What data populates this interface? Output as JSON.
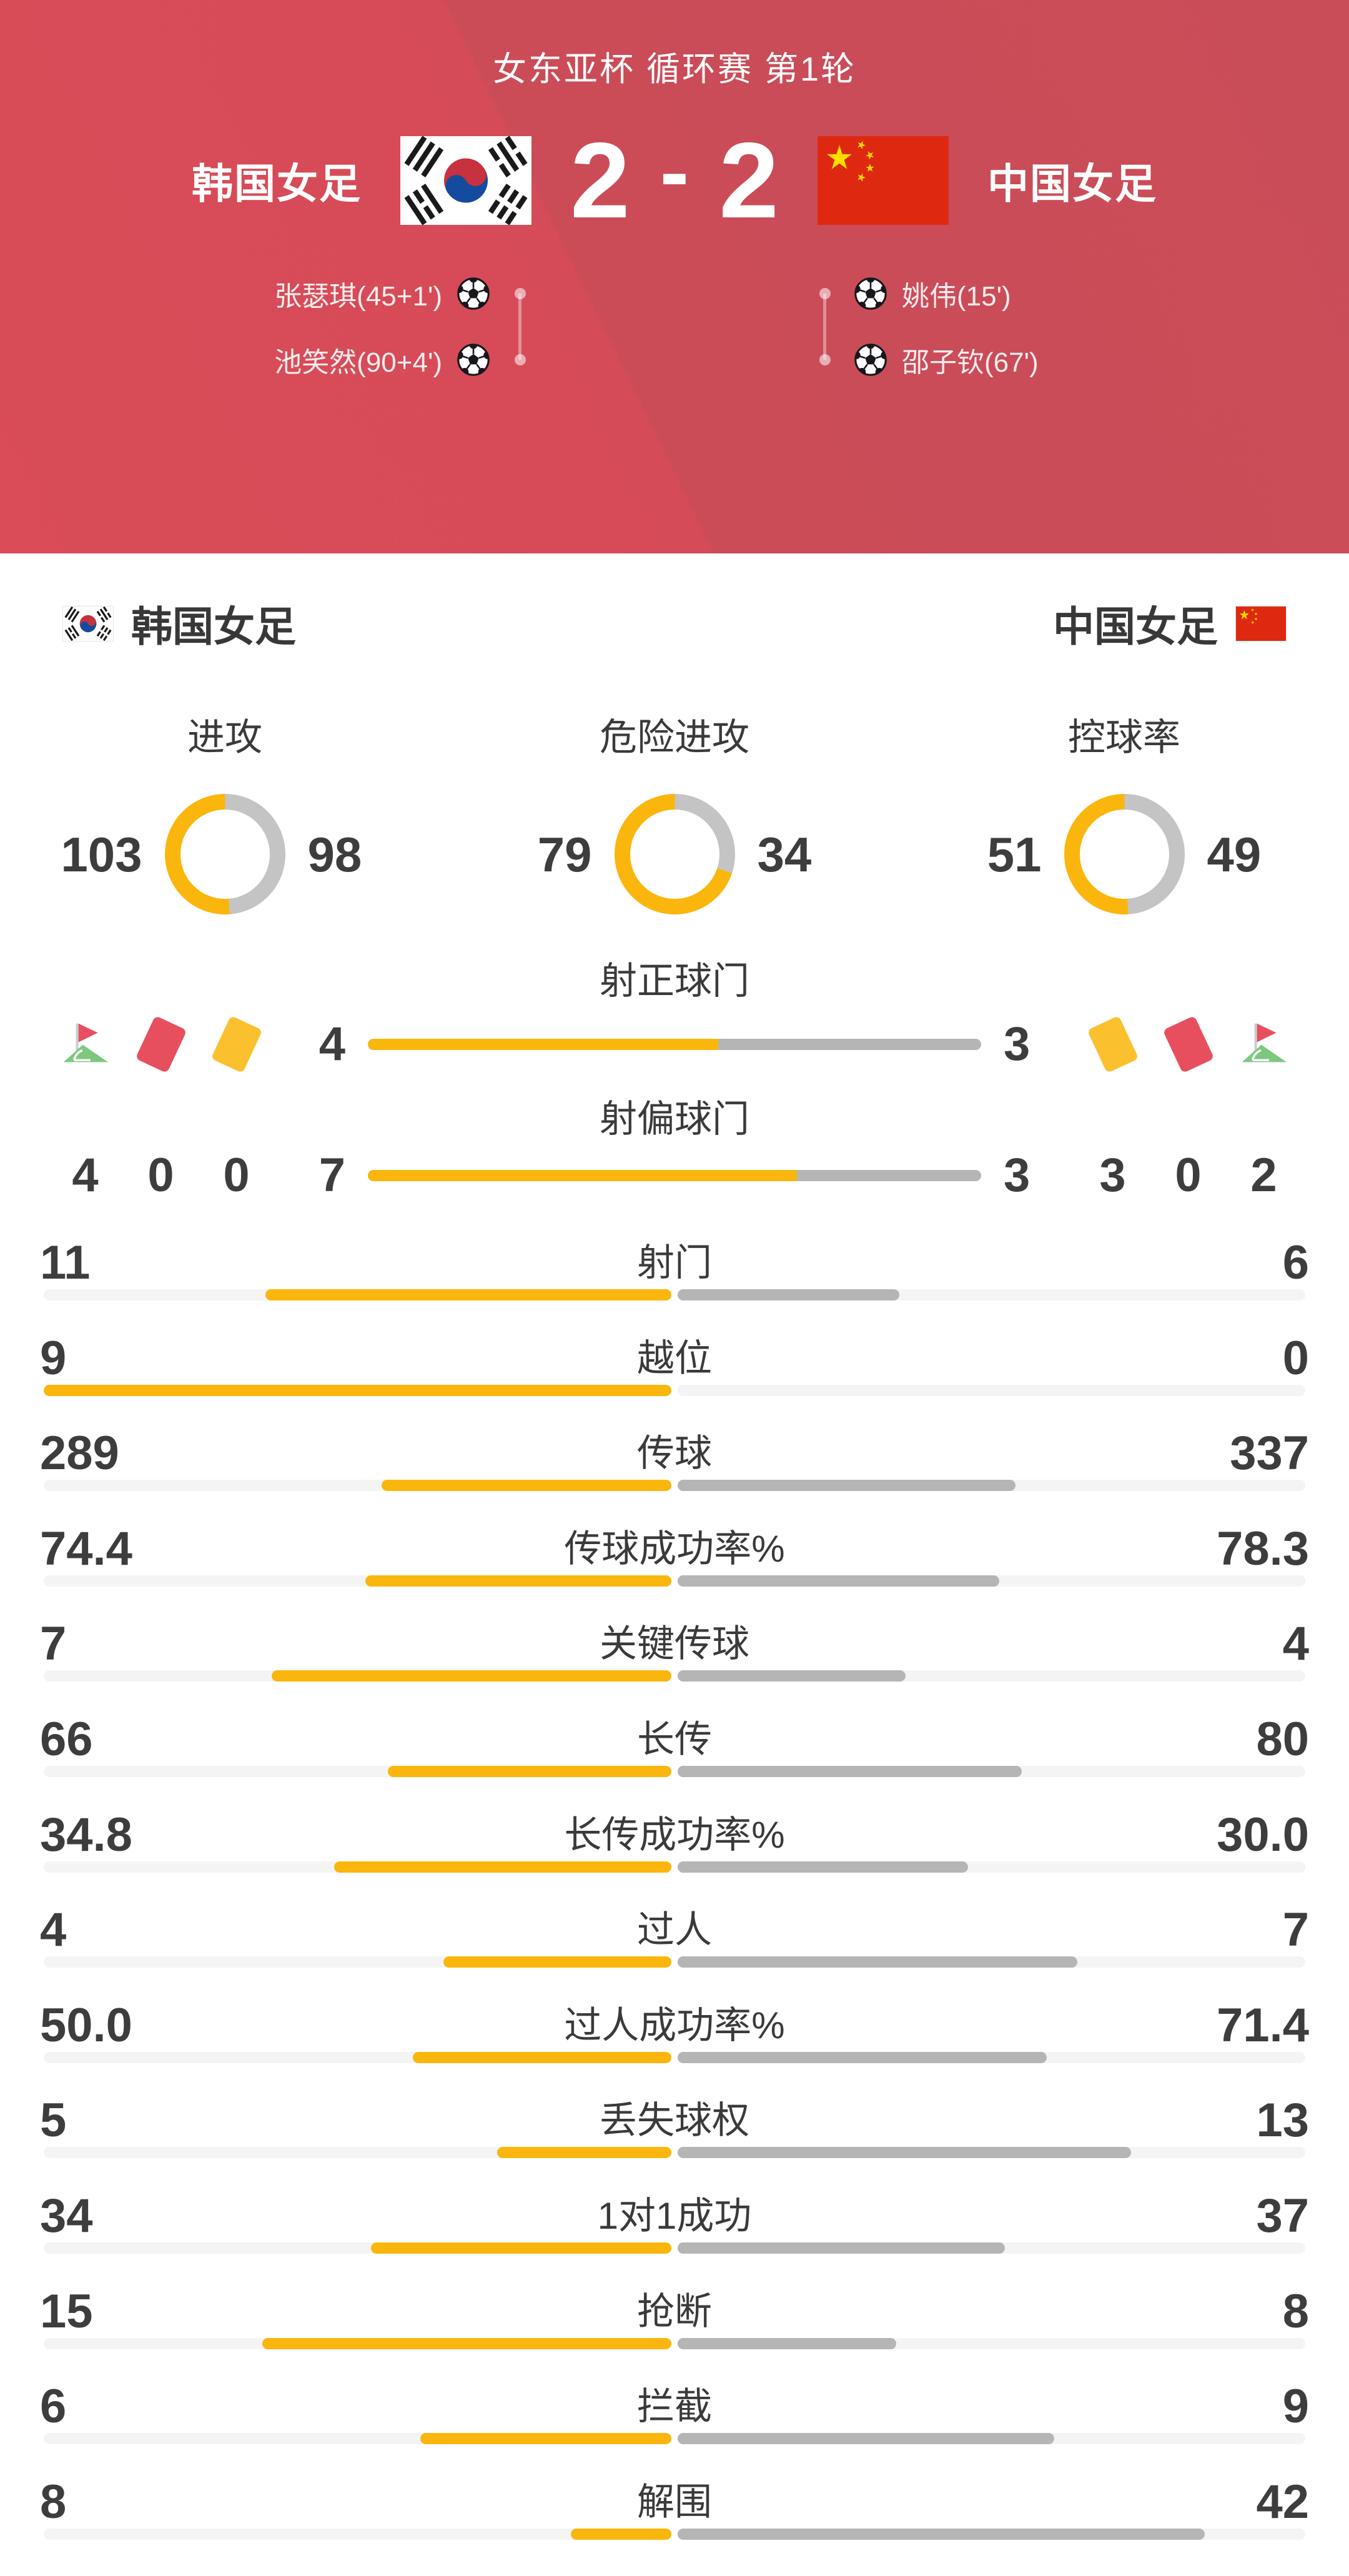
{
  "meta": {
    "competition": "女东亚杯 循环赛 第1轮"
  },
  "match": {
    "home_team": "韩国女足",
    "away_team": "中国女足",
    "home_score": "2",
    "away_score": "2",
    "score_separator": "-",
    "home_flag": "kr",
    "away_flag": "cn",
    "home_scorers": [
      "张瑟琪(45+1')",
      "池笑然(90+4')"
    ],
    "away_scorers": [
      "姚伟(15')",
      "邵子钦(67')"
    ]
  },
  "team_bar": {
    "home": "韩国女足",
    "away": "中国女足"
  },
  "chart_data": [
    {
      "type": "pie",
      "title": "进攻",
      "series": [
        {
          "name": "韩国女足",
          "value": 103
        },
        {
          "name": "中国女足",
          "value": 98
        }
      ]
    },
    {
      "type": "pie",
      "title": "危险进攻",
      "series": [
        {
          "name": "韩国女足",
          "value": 79
        },
        {
          "name": "中国女足",
          "value": 34
        }
      ]
    },
    {
      "type": "pie",
      "title": "控球率",
      "series": [
        {
          "name": "韩国女足",
          "value": 51
        },
        {
          "name": "中国女足",
          "value": 49
        }
      ]
    }
  ],
  "donuts": [
    {
      "label": "进攻",
      "home": "103",
      "away": "98"
    },
    {
      "label": "危险进攻",
      "home": "79",
      "away": "34"
    },
    {
      "label": "控球率",
      "home": "51",
      "away": "49"
    }
  ],
  "discipline": {
    "rows": [
      {
        "title": "射正球门",
        "home": "4",
        "away": "3"
      },
      {
        "title": "射偏球门",
        "home": "7",
        "away": "3"
      }
    ],
    "home_counts": {
      "corner": "4",
      "red": "0",
      "yellow": "0"
    },
    "away_counts": {
      "yellow": "3",
      "red": "0",
      "corner": "2"
    }
  },
  "stats": [
    {
      "label": "射门",
      "home": "11",
      "away": "6"
    },
    {
      "label": "越位",
      "home": "9",
      "away": "0"
    },
    {
      "label": "传球",
      "home": "289",
      "away": "337"
    },
    {
      "label": "传球成功率%",
      "home": "74.4",
      "away": "78.3"
    },
    {
      "label": "关键传球",
      "home": "7",
      "away": "4"
    },
    {
      "label": "长传",
      "home": "66",
      "away": "80"
    },
    {
      "label": "长传成功率%",
      "home": "34.8",
      "away": "30.0"
    },
    {
      "label": "过人",
      "home": "4",
      "away": "7"
    },
    {
      "label": "过人成功率%",
      "home": "50.0",
      "away": "71.4"
    },
    {
      "label": "丢失球权",
      "home": "5",
      "away": "13"
    },
    {
      "label": "1对1成功",
      "home": "34",
      "away": "37"
    },
    {
      "label": "抢断",
      "home": "15",
      "away": "8"
    },
    {
      "label": "拦截",
      "home": "6",
      "away": "9"
    },
    {
      "label": "解围",
      "home": "8",
      "away": "42"
    }
  ],
  "colors": {
    "home_fill": "#fbb60d",
    "away_fill": "#b5b5b5",
    "track": "#f4f4f4",
    "donut_away": "#c4c4c4",
    "header_red": "#d14c58",
    "card_red": "#e84f5e",
    "card_yellow": "#fbc02d",
    "grass_green": "#7dc87f"
  }
}
